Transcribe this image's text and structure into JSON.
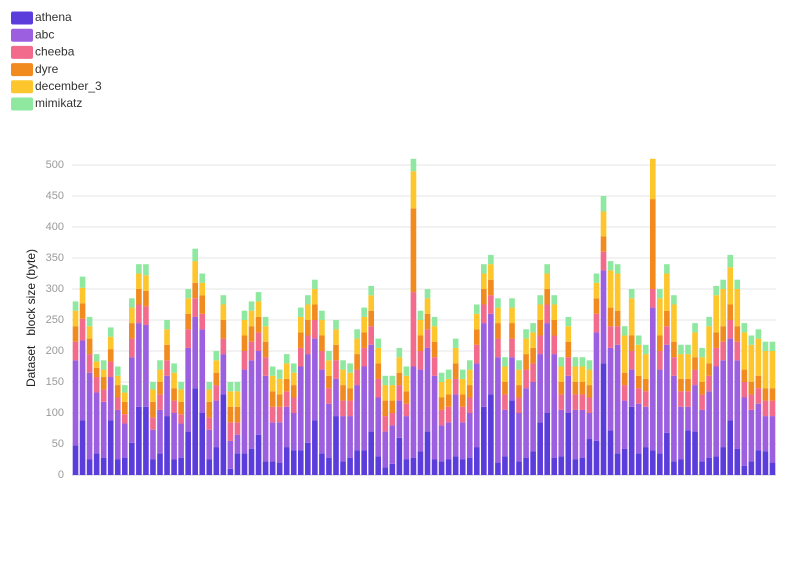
{
  "chart_data": {
    "type": "stacked_bar",
    "ylabel": "Dataset   block size (byte)",
    "ylim": [
      0,
      515
    ],
    "yticks": [
      0,
      50,
      100,
      150,
      200,
      250,
      300,
      350,
      400,
      450,
      500
    ],
    "grid": true,
    "legend": "top-left",
    "series": [
      {
        "name": "athena",
        "color": "#5b3ddc",
        "values": [
          48,
          88,
          25,
          35,
          28,
          88,
          25,
          28,
          52,
          110,
          110,
          25,
          35,
          95,
          25,
          28,
          70,
          140,
          100,
          25,
          45,
          130,
          10,
          35,
          35,
          42,
          65,
          22,
          22,
          20,
          45,
          40,
          40,
          52,
          88,
          35,
          28,
          95,
          22,
          28,
          40,
          40,
          70,
          30,
          12,
          18,
          60,
          25,
          28,
          38,
          70,
          25,
          22,
          25,
          30,
          25,
          28,
          45,
          110,
          130,
          20,
          30,
          120,
          22,
          28,
          38,
          85,
          100,
          28,
          30,
          100,
          25,
          28,
          58,
          55,
          180,
          72,
          35,
          42,
          110,
          35,
          45,
          40,
          35,
          68,
          22,
          25,
          72,
          70,
          22,
          28,
          30,
          45,
          88,
          42,
          15,
          22,
          40,
          38,
          20
        ]
      },
      {
        "name": "abc",
        "color": "#9b5fe0",
        "values": [
          137,
          129,
          140,
          98,
          90,
          70,
          80,
          55,
          138,
          135,
          132,
          48,
          70,
          65,
          75,
          55,
          135,
          115,
          135,
          48,
          75,
          65,
          45,
          30,
          135,
          143,
          135,
          138,
          63,
          65,
          65,
          60,
          135,
          143,
          132,
          135,
          87,
          60,
          73,
          67,
          105,
          135,
          140,
          95,
          58,
          62,
          60,
          70,
          147,
          132,
          135,
          135,
          58,
          60,
          100,
          60,
          72,
          135,
          135,
          130,
          170,
          75,
          70,
          78,
          112,
          112,
          110,
          145,
          167,
          75,
          60,
          80,
          77,
          42,
          175,
          150,
          133,
          175,
          78,
          60,
          80,
          65,
          230,
          135,
          142,
          138,
          85,
          38,
          75,
          83,
          107,
          145,
          140,
          132,
          143,
          110,
          83,
          75,
          57,
          75
        ]
      },
      {
        "name": "cheeba",
        "color": "#f26b8c",
        "values": [
          30,
          35,
          30,
          25,
          20,
          25,
          20,
          15,
          30,
          30,
          30,
          20,
          25,
          25,
          20,
          15,
          30,
          30,
          25,
          20,
          25,
          25,
          30,
          20,
          30,
          30,
          30,
          30,
          25,
          25,
          25,
          25,
          30,
          30,
          30,
          30,
          25,
          30,
          25,
          25,
          25,
          30,
          30,
          30,
          25,
          20,
          25,
          20,
          120,
          30,
          30,
          30,
          25,
          25,
          25,
          25,
          25,
          30,
          30,
          30,
          30,
          25,
          30,
          25,
          30,
          30,
          30,
          30,
          30,
          25,
          30,
          25,
          25,
          25,
          30,
          30,
          35,
          30,
          25,
          30,
          25,
          25,
          30,
          30,
          30,
          30,
          25,
          25,
          25,
          25,
          25,
          30,
          30,
          30,
          30,
          25,
          25,
          25,
          25,
          25
        ]
      },
      {
        "name": "dyre",
        "color": "#f18a1f",
        "values": [
          25,
          25,
          25,
          15,
          20,
          20,
          20,
          20,
          25,
          25,
          25,
          25,
          20,
          25,
          20,
          20,
          25,
          25,
          30,
          25,
          20,
          30,
          25,
          25,
          25,
          25,
          25,
          25,
          25,
          20,
          20,
          20,
          25,
          25,
          25,
          25,
          20,
          25,
          25,
          20,
          25,
          25,
          25,
          25,
          25,
          20,
          20,
          20,
          135,
          25,
          25,
          25,
          20,
          20,
          25,
          20,
          20,
          25,
          25,
          25,
          25,
          20,
          25,
          20,
          25,
          25,
          25,
          25,
          25,
          20,
          25,
          20,
          20,
          20,
          25,
          25,
          30,
          25,
          20,
          25,
          20,
          20,
          145,
          25,
          25,
          25,
          20,
          20,
          20,
          20,
          20,
          25,
          25,
          25,
          25,
          20,
          20,
          20,
          20,
          20
        ]
      },
      {
        "name": "december_3",
        "color": "#fcc62c",
        "values": [
          25,
          25,
          20,
          10,
          12,
          20,
          15,
          15,
          25,
          25,
          25,
          20,
          20,
          25,
          25,
          20,
          25,
          35,
          20,
          20,
          20,
          25,
          25,
          25,
          25,
          25,
          25,
          25,
          25,
          25,
          25,
          20,
          25,
          25,
          25,
          25,
          25,
          25,
          25,
          25,
          25,
          25,
          25,
          25,
          25,
          25,
          25,
          25,
          60,
          25,
          25,
          25,
          25,
          25,
          25,
          25,
          25,
          25,
          25,
          25,
          25,
          25,
          25,
          25,
          25,
          25,
          25,
          25,
          25,
          25,
          25,
          25,
          25,
          25,
          25,
          40,
          60,
          60,
          60,
          60,
          50,
          40,
          65,
          60,
          60,
          60,
          40,
          40,
          40,
          40,
          60,
          60,
          60,
          60,
          60,
          60,
          60,
          60,
          60,
          60
        ]
      },
      {
        "name": "mimikatz",
        "color": "#8fe8a0",
        "values": [
          15,
          18,
          15,
          12,
          15,
          15,
          15,
          12,
          15,
          15,
          18,
          12,
          15,
          15,
          15,
          12,
          15,
          20,
          15,
          12,
          15,
          15,
          15,
          15,
          15,
          15,
          15,
          15,
          15,
          15,
          15,
          15,
          15,
          15,
          15,
          15,
          15,
          15,
          15,
          15,
          15,
          15,
          15,
          15,
          15,
          15,
          15,
          15,
          20,
          15,
          15,
          15,
          15,
          15,
          15,
          15,
          15,
          15,
          15,
          15,
          15,
          15,
          15,
          15,
          15,
          15,
          15,
          15,
          15,
          15,
          15,
          15,
          15,
          15,
          15,
          25,
          15,
          15,
          15,
          15,
          15,
          15,
          0,
          15,
          15,
          15,
          15,
          15,
          15,
          15,
          15,
          15,
          15,
          20,
          15,
          15,
          15,
          15,
          15,
          15
        ]
      }
    ]
  }
}
